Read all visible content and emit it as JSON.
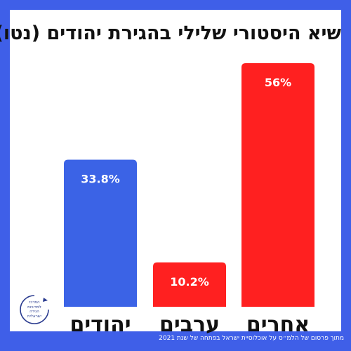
{
  "chart_data": {
    "type": "bar",
    "title": "שיא היסטורי שלילי בהגירת יהודים (נטו)",
    "categories": [
      "אחרים",
      "ערבים",
      "יהודים"
    ],
    "values": [
      56,
      10.2,
      33.8
    ],
    "value_labels": [
      "56%",
      "10.2%",
      "33.8%"
    ],
    "colors": [
      "#ff2020",
      "#ff2020",
      "#3b63e6"
    ],
    "ylim": [
      0,
      56
    ],
    "grid": false,
    "legend": "none"
  },
  "footer": {
    "source": "מתוך פרסום של הלמ״ס על אוכלוסיית ישראל בפתחה של שנת 2021"
  },
  "logo": {
    "lines": [
      "המרכז",
      "למדיניות",
      "הגירה",
      "ישראלית"
    ],
    "color": "#2a3b8f"
  },
  "colors": {
    "frame": "#3f5fe8",
    "card": "#ffffff"
  }
}
